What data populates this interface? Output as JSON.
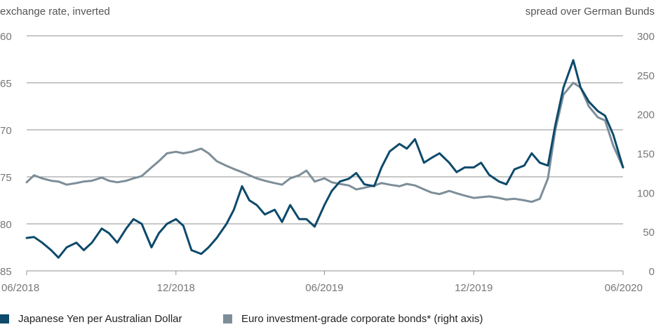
{
  "colors": {
    "yen": "#0d4a6b",
    "euro": "#7d8e99",
    "grid": "#8f8f8f"
  },
  "chart_data": {
    "type": "line",
    "left_axis_title": "exchange rate, inverted",
    "right_axis_title": "spread over German Bunds",
    "left_ticks": [
      "60",
      "65",
      "70",
      "75",
      "80",
      "85"
    ],
    "right_ticks": [
      "300",
      "250",
      "200",
      "150",
      "100",
      "50",
      "0"
    ],
    "x_ticks": [
      "06/2018",
      "12/2018",
      "06/2019",
      "12/2019",
      "06/2020"
    ],
    "left_axis": {
      "min": 60,
      "max": 85,
      "inverted": true
    },
    "right_axis": {
      "min": 0,
      "max": 300
    },
    "x_range": [
      "2018-06",
      "2020-06"
    ],
    "grid": "horizontal",
    "legend_position": "bottom",
    "series": [
      {
        "name": "Japanese Yen per Australian Dollar",
        "axis": "left",
        "color_key": "yen",
        "points": [
          [
            "2018-06-01",
            81.5
          ],
          [
            "2018-06-10",
            81.4
          ],
          [
            "2018-06-20",
            82.0
          ],
          [
            "2018-07-01",
            82.8
          ],
          [
            "2018-07-10",
            83.6
          ],
          [
            "2018-07-20",
            82.5
          ],
          [
            "2018-08-01",
            82.0
          ],
          [
            "2018-08-10",
            82.8
          ],
          [
            "2018-08-20",
            82.0
          ],
          [
            "2018-09-01",
            80.5
          ],
          [
            "2018-09-10",
            81.0
          ],
          [
            "2018-09-20",
            82.0
          ],
          [
            "2018-10-01",
            80.5
          ],
          [
            "2018-10-10",
            79.5
          ],
          [
            "2018-10-20",
            80.0
          ],
          [
            "2018-11-01",
            82.5
          ],
          [
            "2018-11-10",
            81.0
          ],
          [
            "2018-11-20",
            80.0
          ],
          [
            "2018-12-01",
            79.5
          ],
          [
            "2018-12-10",
            80.2
          ],
          [
            "2018-12-20",
            82.8
          ],
          [
            "2019-01-01",
            83.2
          ],
          [
            "2019-01-10",
            82.5
          ],
          [
            "2019-01-20",
            81.5
          ],
          [
            "2019-02-01",
            80.0
          ],
          [
            "2019-02-10",
            78.5
          ],
          [
            "2019-02-20",
            76.0
          ],
          [
            "2019-03-01",
            77.5
          ],
          [
            "2019-03-10",
            78.0
          ],
          [
            "2019-03-20",
            79.0
          ],
          [
            "2019-04-01",
            78.5
          ],
          [
            "2019-04-10",
            79.8
          ],
          [
            "2019-04-20",
            78.0
          ],
          [
            "2019-05-01",
            79.5
          ],
          [
            "2019-05-10",
            79.5
          ],
          [
            "2019-05-20",
            80.3
          ],
          [
            "2019-06-01",
            78.0
          ],
          [
            "2019-06-10",
            76.5
          ],
          [
            "2019-06-20",
            75.5
          ],
          [
            "2019-07-01",
            75.2
          ],
          [
            "2019-07-10",
            74.6
          ],
          [
            "2019-07-20",
            75.8
          ],
          [
            "2019-08-01",
            76.0
          ],
          [
            "2019-08-10",
            74.0
          ],
          [
            "2019-08-20",
            72.3
          ],
          [
            "2019-09-01",
            71.5
          ],
          [
            "2019-09-10",
            72.0
          ],
          [
            "2019-09-20",
            71.0
          ],
          [
            "2019-10-01",
            73.5
          ],
          [
            "2019-10-10",
            73.0
          ],
          [
            "2019-10-20",
            72.5
          ],
          [
            "2019-11-01",
            73.5
          ],
          [
            "2019-11-10",
            74.5
          ],
          [
            "2019-11-20",
            74.0
          ],
          [
            "2019-12-01",
            74.0
          ],
          [
            "2019-12-10",
            73.5
          ],
          [
            "2019-12-20",
            74.8
          ],
          [
            "2020-01-01",
            75.5
          ],
          [
            "2020-01-10",
            75.8
          ],
          [
            "2020-01-20",
            74.2
          ],
          [
            "2020-02-01",
            73.8
          ],
          [
            "2020-02-10",
            72.5
          ],
          [
            "2020-02-20",
            73.5
          ],
          [
            "2020-03-01",
            73.8
          ],
          [
            "2020-03-10",
            69.5
          ],
          [
            "2020-03-20",
            65.5
          ],
          [
            "2020-04-01",
            62.6
          ],
          [
            "2020-04-10",
            65.5
          ],
          [
            "2020-04-20",
            67.0
          ],
          [
            "2020-05-01",
            68.0
          ],
          [
            "2020-05-10",
            68.5
          ],
          [
            "2020-05-20",
            70.5
          ],
          [
            "2020-06-01",
            74.0
          ]
        ]
      },
      {
        "name": "Euro investment-grade corporate bonds* (right axis)",
        "axis": "right",
        "color_key": "euro",
        "points": [
          [
            "2018-06-01",
            113
          ],
          [
            "2018-06-10",
            122
          ],
          [
            "2018-06-20",
            118
          ],
          [
            "2018-07-01",
            115
          ],
          [
            "2018-07-10",
            114
          ],
          [
            "2018-07-20",
            110
          ],
          [
            "2018-08-01",
            112
          ],
          [
            "2018-08-10",
            114
          ],
          [
            "2018-08-20",
            115
          ],
          [
            "2018-09-01",
            119
          ],
          [
            "2018-09-10",
            115
          ],
          [
            "2018-09-20",
            113
          ],
          [
            "2018-10-01",
            115
          ],
          [
            "2018-10-10",
            118
          ],
          [
            "2018-10-20",
            121
          ],
          [
            "2018-11-01",
            132
          ],
          [
            "2018-11-10",
            140
          ],
          [
            "2018-11-20",
            150
          ],
          [
            "2018-12-01",
            152
          ],
          [
            "2018-12-10",
            150
          ],
          [
            "2018-12-20",
            152
          ],
          [
            "2019-01-01",
            156
          ],
          [
            "2019-01-10",
            150
          ],
          [
            "2019-01-20",
            140
          ],
          [
            "2019-02-01",
            134
          ],
          [
            "2019-02-10",
            130
          ],
          [
            "2019-02-20",
            126
          ],
          [
            "2019-03-01",
            122
          ],
          [
            "2019-03-10",
            118
          ],
          [
            "2019-03-20",
            115
          ],
          [
            "2019-04-01",
            112
          ],
          [
            "2019-04-10",
            110
          ],
          [
            "2019-04-20",
            118
          ],
          [
            "2019-05-01",
            122
          ],
          [
            "2019-05-10",
            128
          ],
          [
            "2019-05-20",
            114
          ],
          [
            "2019-06-01",
            118
          ],
          [
            "2019-06-10",
            113
          ],
          [
            "2019-06-20",
            111
          ],
          [
            "2019-07-01",
            109
          ],
          [
            "2019-07-10",
            104
          ],
          [
            "2019-07-20",
            106
          ],
          [
            "2019-08-01",
            109
          ],
          [
            "2019-08-10",
            112
          ],
          [
            "2019-08-20",
            110
          ],
          [
            "2019-09-01",
            108
          ],
          [
            "2019-09-10",
            111
          ],
          [
            "2019-09-20",
            109
          ],
          [
            "2019-10-01",
            104
          ],
          [
            "2019-10-10",
            100
          ],
          [
            "2019-10-20",
            98
          ],
          [
            "2019-11-01",
            102
          ],
          [
            "2019-11-10",
            99
          ],
          [
            "2019-11-20",
            96
          ],
          [
            "2019-12-01",
            93
          ],
          [
            "2019-12-10",
            94
          ],
          [
            "2019-12-20",
            95
          ],
          [
            "2020-01-01",
            93
          ],
          [
            "2020-01-10",
            91
          ],
          [
            "2020-01-20",
            92
          ],
          [
            "2020-02-01",
            90
          ],
          [
            "2020-02-10",
            88
          ],
          [
            "2020-02-20",
            92
          ],
          [
            "2020-03-01",
            118
          ],
          [
            "2020-03-10",
            180
          ],
          [
            "2020-03-20",
            225
          ],
          [
            "2020-04-01",
            240
          ],
          [
            "2020-04-10",
            234
          ],
          [
            "2020-04-20",
            210
          ],
          [
            "2020-05-01",
            196
          ],
          [
            "2020-05-10",
            192
          ],
          [
            "2020-05-20",
            160
          ],
          [
            "2020-06-01",
            132
          ]
        ]
      }
    ]
  }
}
